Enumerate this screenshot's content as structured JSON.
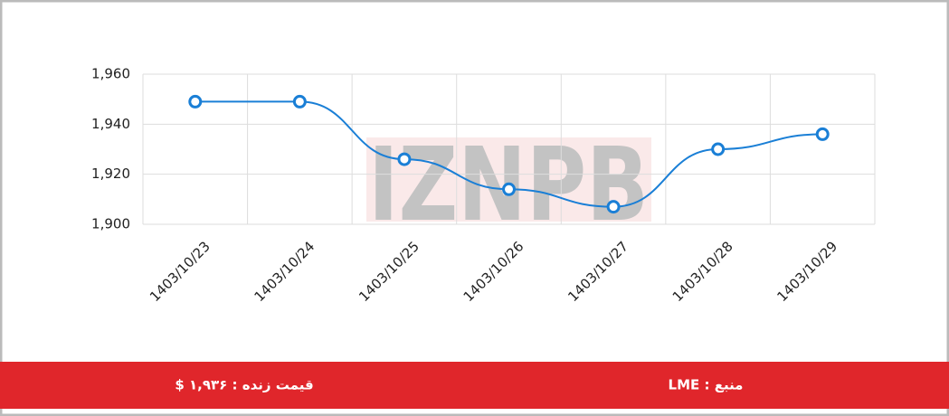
{
  "chart_data": {
    "type": "line",
    "watermark": "IZNPB",
    "categories": [
      "1403/10/23",
      "1403/10/24",
      "1403/10/25",
      "1403/10/26",
      "1403/10/27",
      "1403/10/28",
      "1403/10/29"
    ],
    "series": [
      {
        "color": "#1a7fd6",
        "values": [
          1949,
          1949,
          1926,
          1914,
          1907,
          1930,
          1936
        ]
      }
    ],
    "ylim": [
      1900,
      1960
    ],
    "yticks": [
      {
        "value": 1900,
        "label": "1,900"
      },
      {
        "value": 1920,
        "label": "1,920"
      },
      {
        "value": 1940,
        "label": "1,940"
      },
      {
        "value": 1960,
        "label": "1,960"
      }
    ],
    "grid": true
  },
  "footer": {
    "price": "قیمت زنده : ۱,۹۳۶ $",
    "source": "منبع : LME"
  }
}
